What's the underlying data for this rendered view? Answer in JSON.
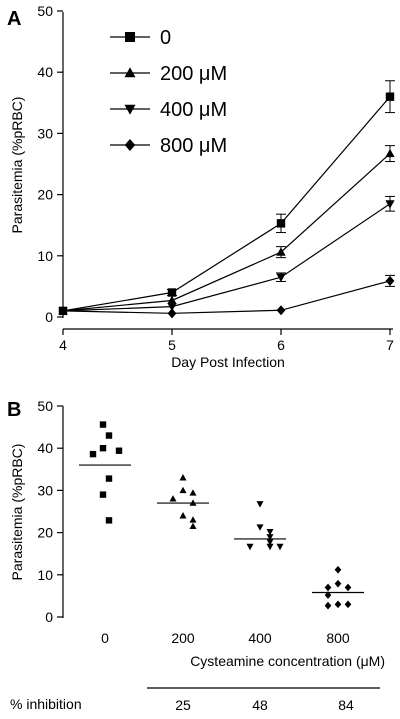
{
  "chart_data": [
    {
      "panel": "A",
      "type": "line",
      "xlabel": "Day Post Infection",
      "ylabel": "Parasitemia (%pRBC)",
      "xlim": [
        4,
        7
      ],
      "ylim": [
        0,
        50
      ],
      "x_ticks": [
        "4",
        "5",
        "6",
        "7"
      ],
      "y_ticks": [
        "0",
        "10",
        "20",
        "30",
        "40",
        "50"
      ],
      "x": [
        4,
        5,
        6,
        7
      ],
      "legend_position": "top-left",
      "series": [
        {
          "name": "0",
          "marker": "square",
          "values": [
            1.0,
            4.0,
            15.3,
            36.0
          ],
          "errors": [
            0.4,
            0.5,
            1.5,
            2.6
          ]
        },
        {
          "name": "200 μM",
          "marker": "triangle-up",
          "values": [
            1.0,
            2.7,
            10.6,
            26.7
          ],
          "errors": [
            0.3,
            0.4,
            0.9,
            1.3
          ]
        },
        {
          "name": "400 μM",
          "marker": "triangle-down",
          "values": [
            1.0,
            1.7,
            6.5,
            18.5
          ],
          "errors": [
            0.3,
            0.3,
            0.7,
            1.2
          ]
        },
        {
          "name": "800 μM",
          "marker": "diamond",
          "values": [
            1.0,
            0.6,
            1.1,
            5.9
          ],
          "errors": [
            0.2,
            0.2,
            0.3,
            0.9
          ]
        }
      ]
    },
    {
      "panel": "B",
      "type": "scatter",
      "xlabel": "Cysteamine concentration (μM)",
      "ylabel": "Parasitemia (%pRBC)",
      "ylim": [
        0,
        50
      ],
      "y_ticks": [
        "0",
        "10",
        "20",
        "30",
        "40",
        "50"
      ],
      "categories": [
        "0",
        "200",
        "400",
        "800"
      ],
      "groups": [
        {
          "category": "0",
          "marker": "square",
          "mean": 36.0,
          "values": [
            45.6,
            43.0,
            40.0,
            39.4,
            38.6,
            32.8,
            29.0,
            22.9
          ]
        },
        {
          "category": "200",
          "marker": "triangle-up",
          "mean": 27.0,
          "values": [
            33.0,
            30.0,
            29.4,
            28.0,
            27.0,
            24.0,
            23.0,
            21.5
          ]
        },
        {
          "category": "400",
          "marker": "triangle-down",
          "mean": 18.5,
          "values": [
            26.8,
            21.3,
            20.2,
            19.0,
            17.8,
            16.7,
            16.7,
            16.7
          ]
        },
        {
          "category": "800",
          "marker": "diamond",
          "mean": 5.8,
          "values": [
            11.2,
            7.9,
            7.0,
            7.0,
            5.2,
            3.0,
            3.0,
            2.7
          ]
        }
      ],
      "inhibition_label": "% inhibition",
      "inhibition": [
        {
          "category": "200",
          "value": "25"
        },
        {
          "category": "400",
          "value": "48"
        },
        {
          "category": "800",
          "value": "84"
        }
      ]
    }
  ]
}
